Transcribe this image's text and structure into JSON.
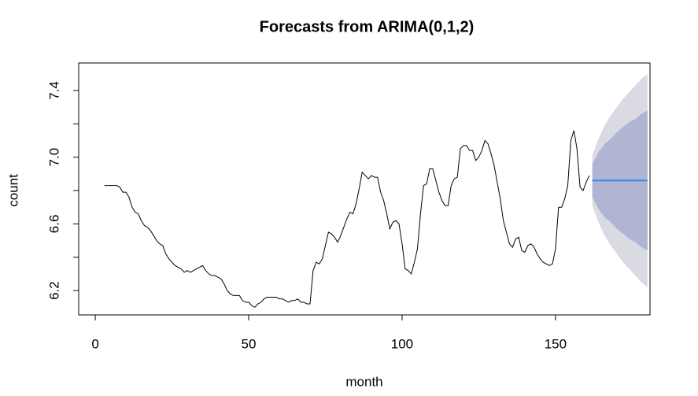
{
  "chart_data": {
    "type": "line",
    "title": "Forecasts from ARIMA(0,1,2)",
    "xlabel": "month",
    "ylabel": "count",
    "xlim": [
      -5.4,
      180.8
    ],
    "ylim": [
      6.054,
      7.565
    ],
    "xticks": [
      0,
      50,
      100,
      150
    ],
    "yticks": [
      6.2,
      6.6,
      {
        "value": 7,
        "label": "7.0"
      },
      7.4
    ],
    "yticks_unlabeled": [
      6.4,
      6.8,
      7.2
    ],
    "bands": [
      {
        "color": "#dadae2",
        "x": [
          162,
          164,
          166,
          168,
          170,
          172,
          174,
          176,
          178,
          180
        ],
        "lower": [
          6.71,
          6.61,
          6.53,
          6.47,
          6.42,
          6.37,
          6.33,
          6.29,
          6.25,
          6.22
        ],
        "upper": [
          7.01,
          7.11,
          7.19,
          7.25,
          7.3,
          7.35,
          7.39,
          7.43,
          7.47,
          7.5
        ]
      },
      {
        "color": "#b1b5d4",
        "x": [
          162,
          164,
          166,
          168,
          170,
          172,
          174,
          176,
          178,
          180
        ],
        "lower": [
          6.76,
          6.69,
          6.64,
          6.61,
          6.57,
          6.54,
          6.51,
          6.49,
          6.46,
          6.44
        ],
        "upper": [
          6.96,
          7.03,
          7.08,
          7.11,
          7.15,
          7.18,
          7.21,
          7.23,
          7.26,
          7.28
        ]
      }
    ],
    "series": [
      {
        "color": "#000000",
        "x": [
          3,
          4,
          5,
          6,
          7,
          8,
          9,
          10,
          11,
          12,
          13,
          14,
          15,
          16,
          17,
          18,
          19,
          20,
          21,
          22,
          23,
          24,
          25,
          26,
          27,
          28,
          29,
          30,
          31,
          32,
          33,
          34,
          35,
          36,
          37,
          38,
          39,
          40,
          41,
          42,
          43,
          44,
          45,
          46,
          47,
          48,
          49,
          50,
          51,
          52,
          53,
          54,
          55,
          56,
          57,
          58,
          59,
          60,
          61,
          62,
          63,
          64,
          65,
          66,
          67,
          68,
          69,
          70,
          71,
          72,
          73,
          74,
          75,
          76,
          77,
          78,
          79,
          80,
          81,
          82,
          83,
          84,
          85,
          86,
          87,
          88,
          89,
          90,
          91,
          92,
          93,
          94,
          95,
          96,
          97,
          98,
          99,
          100,
          101,
          102,
          103,
          104,
          105,
          106,
          107,
          108,
          109,
          110,
          111,
          112,
          113,
          114,
          115,
          116,
          117,
          118,
          119,
          120,
          121,
          122,
          123,
          124,
          125,
          126,
          127,
          128,
          129,
          130,
          131,
          132,
          133,
          134,
          135,
          136,
          137,
          138,
          139,
          140,
          141,
          142,
          143,
          144,
          145,
          146,
          147,
          148,
          149,
          150,
          151,
          152,
          153,
          154,
          155,
          156,
          157,
          158,
          159,
          160,
          161
        ],
        "values": [
          6.83,
          6.83,
          6.83,
          6.83,
          6.83,
          6.82,
          6.79,
          6.79,
          6.76,
          6.7,
          6.67,
          6.66,
          6.62,
          6.59,
          6.58,
          6.56,
          6.53,
          6.5,
          6.48,
          6.47,
          6.42,
          6.39,
          6.37,
          6.35,
          6.34,
          6.33,
          6.31,
          6.32,
          6.31,
          6.32,
          6.33,
          6.34,
          6.35,
          6.32,
          6.3,
          6.29,
          6.29,
          6.28,
          6.27,
          6.24,
          6.2,
          6.18,
          6.17,
          6.17,
          6.17,
          6.14,
          6.13,
          6.13,
          6.11,
          6.1,
          6.12,
          6.13,
          6.15,
          6.16,
          6.16,
          6.16,
          6.16,
          6.15,
          6.15,
          6.14,
          6.13,
          6.14,
          6.14,
          6.15,
          6.13,
          6.13,
          6.12,
          6.12,
          6.32,
          6.37,
          6.36,
          6.39,
          6.47,
          6.55,
          6.54,
          6.52,
          6.49,
          6.53,
          6.58,
          6.63,
          6.67,
          6.66,
          6.72,
          6.81,
          6.91,
          6.89,
          6.87,
          6.89,
          6.88,
          6.88,
          6.79,
          6.74,
          6.66,
          6.57,
          6.61,
          6.62,
          6.6,
          6.48,
          6.33,
          6.32,
          6.3,
          6.37,
          6.45,
          6.66,
          6.83,
          6.84,
          6.93,
          6.93,
          6.86,
          6.79,
          6.74,
          6.71,
          6.71,
          6.83,
          6.87,
          6.88,
          7.05,
          7.07,
          7.07,
          7.04,
          7.04,
          6.98,
          7.0,
          7.04,
          7.1,
          7.08,
          7.02,
          6.95,
          6.85,
          6.75,
          6.62,
          6.55,
          6.48,
          6.46,
          6.51,
          6.52,
          6.44,
          6.43,
          6.47,
          6.48,
          6.46,
          6.42,
          6.39,
          6.37,
          6.36,
          6.35,
          6.36,
          6.45,
          6.7,
          6.7,
          6.75,
          6.83,
          7.1,
          7.16,
          7.05,
          6.82,
          6.8,
          6.85,
          6.89
        ]
      },
      {
        "color": "#2e8be0",
        "x": [
          162,
          164,
          166,
          168,
          170,
          172,
          174,
          176,
          178,
          180
        ],
        "values": [
          6.86,
          6.86,
          6.86,
          6.86,
          6.86,
          6.86,
          6.86,
          6.86,
          6.86,
          6.86
        ]
      }
    ]
  }
}
